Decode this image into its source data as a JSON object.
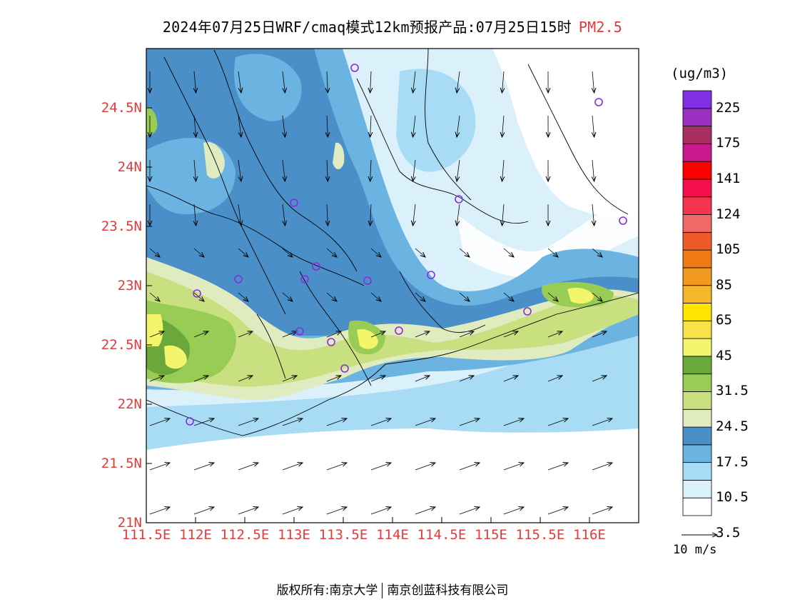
{
  "title": {
    "main": "2024年07月25日WRF/cmaq模式12km预报产品:07月25日15时",
    "variable": "PM2.5"
  },
  "map": {
    "lat_ticks": [
      "24.5N",
      "24N",
      "23.5N",
      "23N",
      "22.5N",
      "22N",
      "21.5N",
      "21N"
    ],
    "lon_ticks": [
      "111.5E",
      "112E",
      "112.5E",
      "113E",
      "113.5E",
      "114E",
      "114.5E",
      "115E",
      "115.5E",
      "116E"
    ],
    "lat_range": [
      21,
      25
    ],
    "lon_range": [
      111.5,
      116.5
    ]
  },
  "colorbar": {
    "unit": "(ug/m3)",
    "labels": [
      "225",
      "175",
      "141",
      "124",
      "105",
      "85",
      "65",
      "45",
      "31.5",
      "24.5",
      "17.5",
      "10.5",
      "3.5"
    ],
    "colors": [
      "#ffffff",
      "#daf0fa",
      "#a8dcf5",
      "#6bb3e0",
      "#4a8fc7",
      "#e0ebc0",
      "#c8e080",
      "#98cc55",
      "#6aa83c",
      "#f3f56a",
      "#f7e24a",
      "#ffe400",
      "#f5b62a",
      "#f29a20",
      "#f07b16",
      "#ee5a2a",
      "#f06868",
      "#f5334f",
      "#f50f4a",
      "#ff0000",
      "#c8188c",
      "#a83060",
      "#9a30c0",
      "#8030e0"
    ]
  },
  "wind_legend": {
    "label": "10 m/s"
  },
  "footer": {
    "copyright": "版权所有:南京大学",
    "company": "南京创蓝科技有限公司"
  }
}
